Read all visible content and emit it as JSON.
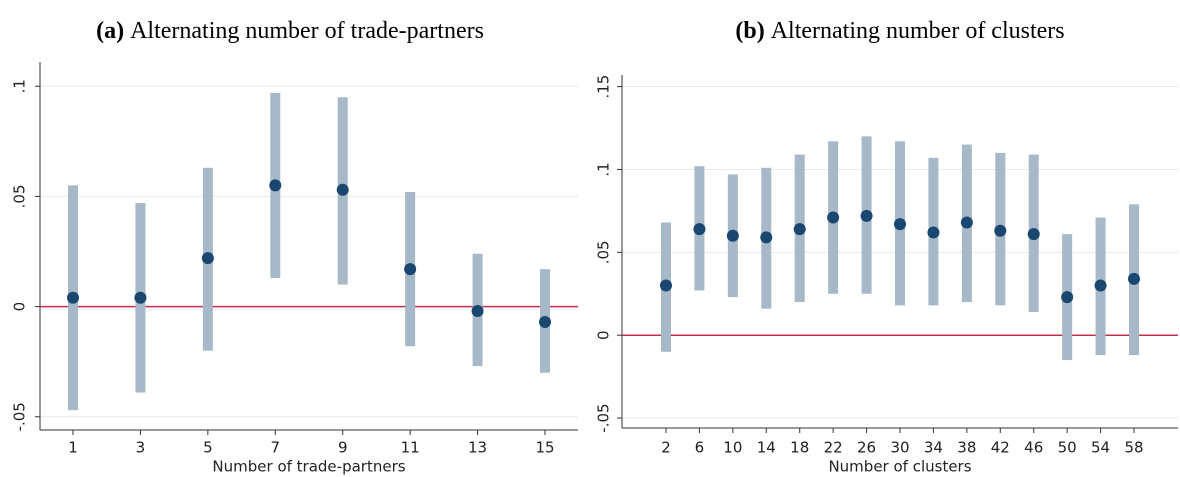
{
  "chart_data": [
    {
      "type": "errorbar",
      "panel": "(a)",
      "title": "Alternating number of trade-partners",
      "x_label": "Number of trade-partners",
      "categories": [
        "1",
        "3",
        "5",
        "7",
        "9",
        "11",
        "13",
        "15"
      ],
      "values": [
        0.004,
        0.004,
        0.022,
        0.055,
        0.053,
        0.017,
        -0.002,
        -0.007
      ],
      "ci_low": [
        -0.047,
        -0.039,
        -0.02,
        0.013,
        0.01,
        -0.018,
        -0.027,
        -0.03
      ],
      "ci_high": [
        0.055,
        0.047,
        0.063,
        0.097,
        0.095,
        0.052,
        0.024,
        0.017
      ],
      "ylim": [
        -0.056,
        0.111
      ],
      "yticks": [
        {
          "value": -0.05,
          "label": "-.05"
        },
        0,
        {
          "value": 0.05,
          "label": ".05"
        },
        {
          "value": 0.1,
          "label": ".1"
        }
      ],
      "hline": 0,
      "grid": true,
      "point_color": "#1a476f",
      "bar_color": "#a7b8c9",
      "hline_color": "#c0304b"
    },
    {
      "type": "errorbar",
      "panel": "(b)",
      "title": "Alternating number of clusters",
      "x_label": "Number of clusters",
      "categories": [
        "2",
        "6",
        "10",
        "14",
        "18",
        "22",
        "26",
        "30",
        "34",
        "38",
        "42",
        "46",
        "50",
        "54",
        "58"
      ],
      "values": [
        0.03,
        0.064,
        0.06,
        0.059,
        0.064,
        0.071,
        0.072,
        0.067,
        0.062,
        0.068,
        0.063,
        0.061,
        0.023,
        0.03,
        0.034
      ],
      "ci_low": [
        -0.01,
        0.027,
        0.023,
        0.016,
        0.02,
        0.025,
        0.025,
        0.018,
        0.018,
        0.02,
        0.018,
        0.014,
        -0.015,
        -0.012,
        -0.012
      ],
      "ci_high": [
        0.068,
        0.102,
        0.097,
        0.101,
        0.109,
        0.117,
        0.12,
        0.117,
        0.107,
        0.115,
        0.11,
        0.109,
        0.061,
        0.071,
        0.079
      ],
      "ylim": [
        -0.056,
        0.157
      ],
      "yticks": [
        {
          "value": -0.05,
          "label": "-.05"
        },
        0,
        {
          "value": 0.05,
          "label": ".05"
        },
        {
          "value": 0.1,
          "label": ".1"
        },
        {
          "value": 0.15,
          "label": ".15"
        }
      ],
      "hline": 0,
      "grid": true,
      "point_color": "#1a476f",
      "bar_color": "#a7b8c9",
      "hline_color": "#c0304b"
    }
  ]
}
